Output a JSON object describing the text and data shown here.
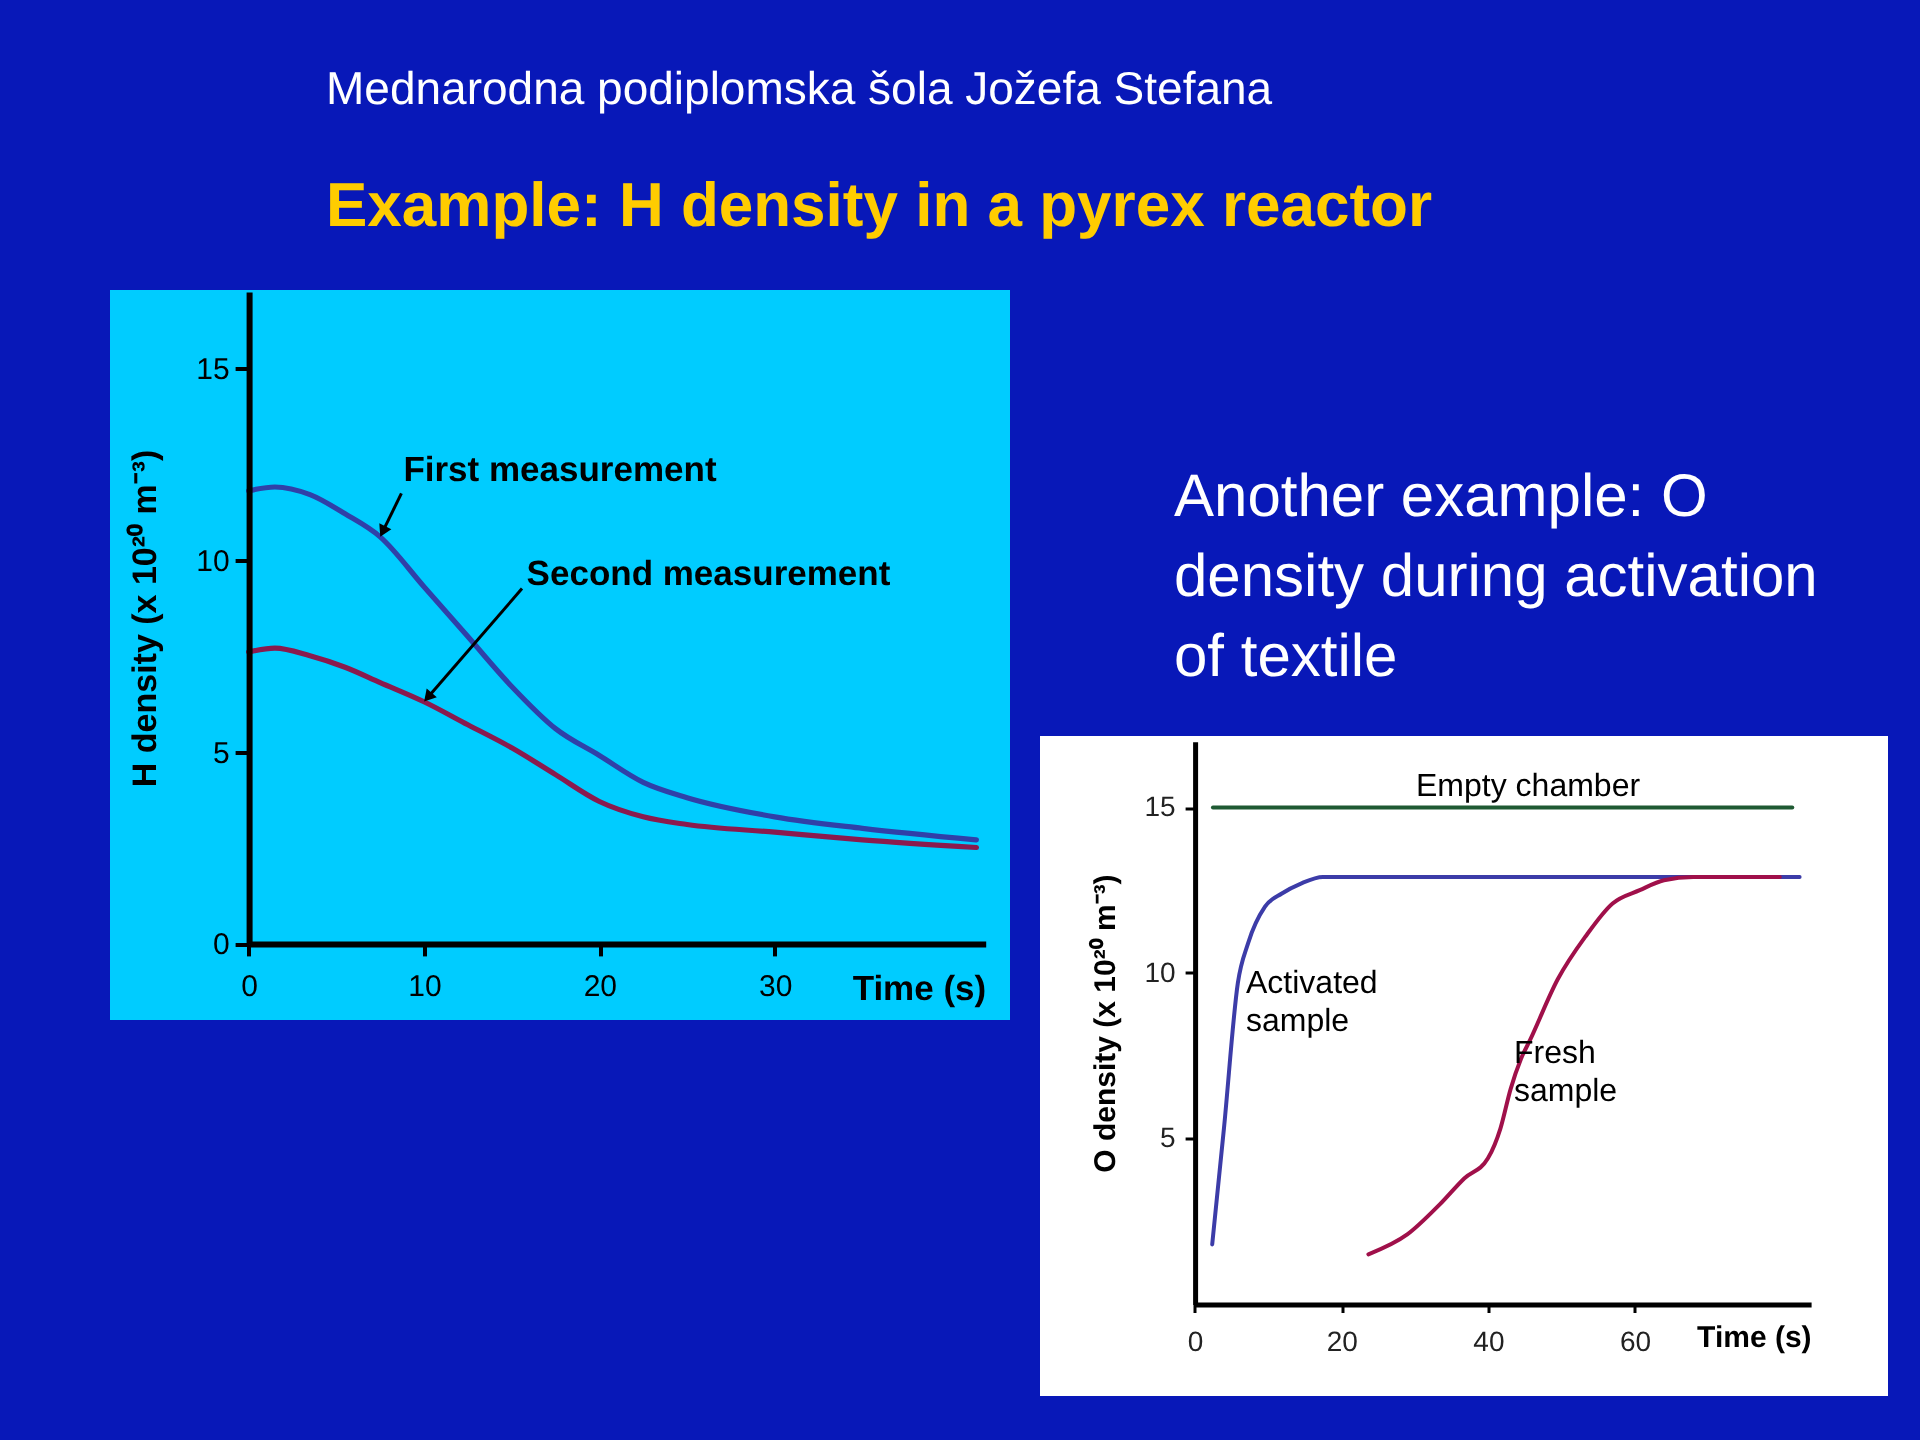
{
  "chart_data": [
    {
      "type": "line",
      "title": "Example: H density in a pyrex reactor",
      "annotations": [
        "Mednarodna podiplomska šola Jožefa Stefana"
      ],
      "xlabel": "Time (s)",
      "ylabel": "H density (x 10²⁰ m⁻³)",
      "xlim": [
        0,
        42
      ],
      "ylim": [
        0,
        17
      ],
      "xticks": [
        0,
        10,
        20,
        30
      ],
      "yticks": [
        0,
        5,
        10,
        15
      ],
      "series": [
        {
          "name": "First measurement",
          "color": "#3040a8",
          "x": [
            0,
            1.5,
            3.5,
            5.5,
            7.5,
            10,
            12.5,
            15,
            17.5,
            20,
            22.5,
            25,
            30,
            35,
            41.5
          ],
          "values": [
            11.8,
            11.9,
            11.7,
            11.2,
            10.6,
            9.3,
            8.0,
            6.7,
            5.6,
            4.9,
            4.2,
            3.8,
            3.3,
            3.0,
            2.7
          ]
        },
        {
          "name": "Second measurement",
          "color": "#8a1a4e",
          "x": [
            0,
            1.5,
            3.5,
            5.5,
            7.5,
            10,
            12.5,
            15,
            17.5,
            20,
            22.5,
            25,
            30,
            35,
            41.5
          ],
          "values": [
            7.6,
            7.7,
            7.5,
            7.2,
            6.8,
            6.3,
            5.7,
            5.1,
            4.4,
            3.7,
            3.3,
            3.1,
            2.9,
            2.7,
            2.5
          ]
        }
      ]
    },
    {
      "type": "line",
      "title": "Another example: O density during activation of textile",
      "xlabel": "Time (s)",
      "ylabel": "O density (x 10²⁰ m⁻³)",
      "xlim": [
        0,
        84
      ],
      "ylim": [
        0,
        17
      ],
      "xticks": [
        0,
        20,
        40,
        60
      ],
      "yticks": [
        5,
        10,
        15
      ],
      "series": [
        {
          "name": "Empty chamber",
          "color": "#1f5a33",
          "x": [
            2.5,
            81.5
          ],
          "values": [
            15,
            15
          ]
        },
        {
          "name": "Activated sample",
          "color": "#3c3ca8",
          "x": [
            2.4,
            4,
            5.9,
            7.3,
            9.6,
            11.9,
            14.5,
            17.5,
            82.5
          ],
          "values": [
            1.8,
            5.3,
            9.7,
            10.9,
            12.0,
            12.4,
            12.7,
            12.9,
            12.9
          ]
        },
        {
          "name": "Fresh sample",
          "color": "#a0104a",
          "x": [
            23.7,
            29,
            33.4,
            36.8,
            40,
            41.7,
            43.1,
            44.5,
            45.8,
            49.5,
            53.3,
            57,
            60.7,
            64,
            68,
            79.8
          ],
          "values": [
            1.5,
            2.1,
            3.0,
            3.8,
            4.4,
            5.3,
            6.5,
            7.4,
            8.0,
            9.8,
            11.1,
            12.1,
            12.5,
            12.8,
            12.9,
            12.9
          ]
        }
      ]
    }
  ]
}
